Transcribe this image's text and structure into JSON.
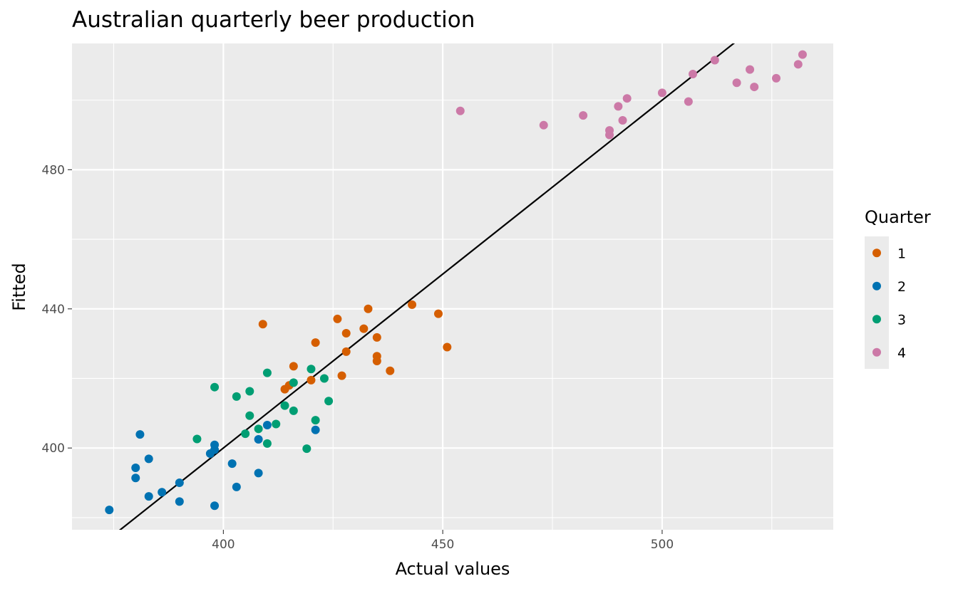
{
  "chart_data": {
    "type": "scatter",
    "title": "Australian quarterly beer production",
    "xlabel": "Actual values",
    "ylabel": "Fitted",
    "xlim": [
      365.5,
      539
    ],
    "ylim": [
      376.5,
      516.3
    ],
    "xticks": [
      400,
      450,
      500
    ],
    "yticks": [
      400,
      440,
      480
    ],
    "xtick_labels": [
      "400",
      "450",
      "500"
    ],
    "ytick_labels": [
      "400",
      "440",
      "480"
    ],
    "reference_line": {
      "slope": 1,
      "intercept": 0,
      "color": "#000000"
    },
    "grid": true,
    "legend": {
      "title": "Quarter",
      "position": "right"
    },
    "series": [
      {
        "name": "1",
        "color": "#d55e00",
        "points": [
          [
            409,
            435.6
          ],
          [
            416,
            423.5
          ],
          [
            415,
            418.0
          ],
          [
            414,
            416.9
          ],
          [
            420,
            419.5
          ],
          [
            421,
            430.3
          ],
          [
            426,
            437.1
          ],
          [
            428,
            433.0
          ],
          [
            428,
            427.7
          ],
          [
            427,
            420.8
          ],
          [
            432,
            434.3
          ],
          [
            433,
            440.0
          ],
          [
            435,
            431.8
          ],
          [
            435,
            426.4
          ],
          [
            435,
            425.0
          ],
          [
            438,
            422.2
          ],
          [
            443,
            441.2
          ],
          [
            449,
            438.6
          ],
          [
            451,
            429.0
          ]
        ]
      },
      {
        "name": "2",
        "color": "#0072b2",
        "points": [
          [
            374,
            382.2
          ],
          [
            380,
            394.3
          ],
          [
            380,
            391.4
          ],
          [
            381,
            403.9
          ],
          [
            383,
            396.9
          ],
          [
            383,
            386.1
          ],
          [
            386,
            387.3
          ],
          [
            390,
            390.0
          ],
          [
            390,
            384.6
          ],
          [
            397,
            398.4
          ],
          [
            398,
            400.9
          ],
          [
            398,
            399.5
          ],
          [
            398,
            383.4
          ],
          [
            402,
            395.5
          ],
          [
            403,
            388.8
          ],
          [
            408,
            402.5
          ],
          [
            408,
            392.8
          ],
          [
            410,
            406.6
          ],
          [
            421,
            405.2
          ]
        ]
      },
      {
        "name": "3",
        "color": "#009e73",
        "points": [
          [
            394,
            402.6
          ],
          [
            398,
            417.5
          ],
          [
            403,
            414.8
          ],
          [
            405,
            404.1
          ],
          [
            406,
            416.3
          ],
          [
            406,
            409.3
          ],
          [
            408,
            405.5
          ],
          [
            410,
            421.6
          ],
          [
            410,
            401.3
          ],
          [
            412,
            406.9
          ],
          [
            414,
            412.2
          ],
          [
            416,
            418.8
          ],
          [
            416,
            410.7
          ],
          [
            419,
            399.8
          ],
          [
            420,
            422.7
          ],
          [
            421,
            408.0
          ],
          [
            423,
            420.0
          ],
          [
            424,
            413.5
          ]
        ]
      },
      {
        "name": "4",
        "color": "#cc79a7",
        "points": [
          [
            454,
            496.9
          ],
          [
            473,
            492.8
          ],
          [
            482,
            495.6
          ],
          [
            488,
            491.3
          ],
          [
            488,
            490.0
          ],
          [
            490,
            498.2
          ],
          [
            491,
            494.2
          ],
          [
            492,
            500.5
          ],
          [
            500,
            502.1
          ],
          [
            506,
            499.6
          ],
          [
            507,
            507.5
          ],
          [
            512,
            511.5
          ],
          [
            517,
            505.0
          ],
          [
            520,
            508.8
          ],
          [
            521,
            503.8
          ],
          [
            526,
            506.3
          ],
          [
            531,
            510.3
          ],
          [
            532,
            513.1
          ]
        ]
      }
    ]
  }
}
